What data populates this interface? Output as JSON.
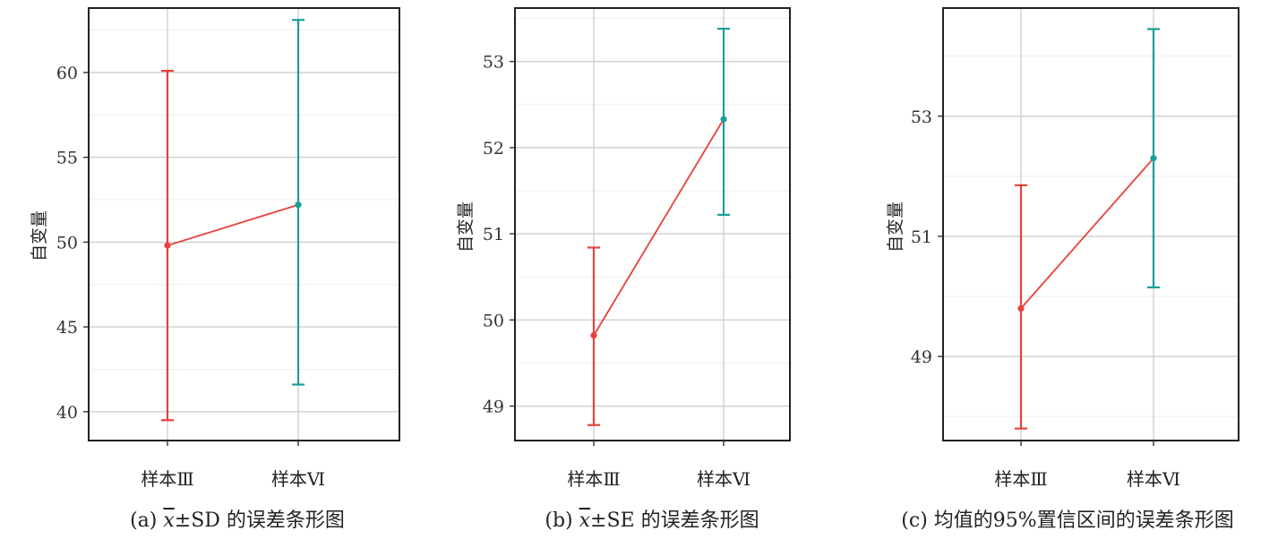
{
  "chart_data": [
    {
      "type": "errorbar",
      "caption_prefix": "(a) ",
      "caption_x": "x",
      "caption_suffix": "±SD 的误差条形图",
      "ylabel": "自变量",
      "categories": [
        "样本Ⅲ",
        "样本Ⅵ"
      ],
      "means": [
        49.8,
        52.2
      ],
      "lower": [
        39.5,
        41.6
      ],
      "upper": [
        60.1,
        63.1
      ],
      "ylim": [
        38.3,
        63.8
      ],
      "yticks": [
        40,
        45,
        50,
        55,
        60
      ],
      "ytick_labels": [
        "40",
        "45",
        "50",
        "55",
        "60"
      ],
      "colors": [
        "#e8413c",
        "#1a9e9a"
      ],
      "line_color": "#e8413c",
      "grid": true
    },
    {
      "type": "errorbar",
      "caption_prefix": "(b) ",
      "caption_x": "x",
      "caption_suffix": "±SE 的误差条形图",
      "ylabel": "自变量",
      "categories": [
        "样本Ⅲ",
        "样本Ⅵ"
      ],
      "means": [
        49.82,
        52.33
      ],
      "lower": [
        48.78,
        51.22
      ],
      "upper": [
        50.84,
        53.38
      ],
      "ylim": [
        48.6,
        53.62
      ],
      "yticks": [
        49,
        50,
        51,
        52,
        53
      ],
      "ytick_labels": [
        "49",
        "50",
        "51",
        "52",
        "53"
      ],
      "colors": [
        "#e8413c",
        "#1a9e9a"
      ],
      "line_color": "#e8413c",
      "grid": true
    },
    {
      "type": "errorbar",
      "caption_prefix": "(c) ",
      "caption_x": "",
      "caption_suffix": "均值的95%置信区间的误差条形图",
      "ylabel": "自变量",
      "categories": [
        "样本Ⅲ",
        "样本Ⅵ"
      ],
      "means": [
        49.8,
        52.3
      ],
      "lower": [
        47.8,
        50.15
      ],
      "upper": [
        51.85,
        54.45
      ],
      "ylim": [
        47.6,
        54.8
      ],
      "yticks": [
        49,
        51,
        53
      ],
      "ytick_labels": [
        "49",
        "51",
        "53"
      ],
      "colors": [
        "#e8413c",
        "#1a9e9a"
      ],
      "line_color": "#e8413c",
      "grid": true
    }
  ]
}
